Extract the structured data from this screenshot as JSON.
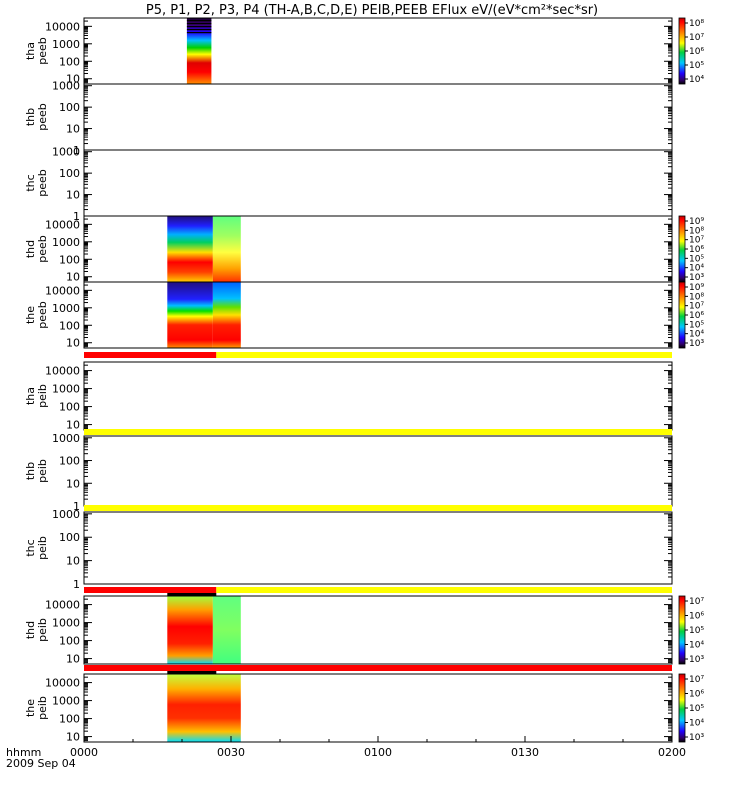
{
  "chart_data": {
    "type": "heatmap",
    "title": "P5, P1, P2, P3, P4 (TH-A,B,C,D,E) PEIB,PEEB EFlux eV/(eV*cm²*sec*sr)",
    "x_axis": {
      "label": "hhmm",
      "date": "2009 Sep 04",
      "ticks": [
        "0000",
        "0030",
        "0100",
        "0130",
        "0200"
      ],
      "range_minutes": [
        0,
        120
      ]
    },
    "panels": [
      {
        "probe_label": "tha",
        "instrument": "peeb",
        "y_ticks": [
          "10",
          "100",
          "1000",
          "10000"
        ],
        "yrange": [
          5,
          30000
        ],
        "scale": "log",
        "colorbar_ticks": [
          "10⁴",
          "10⁵",
          "10⁶",
          "10⁷",
          "10⁸"
        ],
        "data_segments": [
          {
            "start_min": 21,
            "end_min": 26
          }
        ]
      },
      {
        "probe_label": "thb",
        "instrument": "peeb",
        "y_ticks": [
          "1",
          "10",
          "100",
          "1000"
        ],
        "yrange": [
          1,
          1200
        ],
        "scale": "log",
        "data_segments": []
      },
      {
        "probe_label": "thc",
        "instrument": "peeb",
        "y_ticks": [
          "1",
          "10",
          "100",
          "1000"
        ],
        "yrange": [
          1,
          1200
        ],
        "scale": "log",
        "data_segments": []
      },
      {
        "probe_label": "thd",
        "instrument": "peeb",
        "y_ticks": [
          "10",
          "100",
          "1000",
          "10000"
        ],
        "yrange": [
          5,
          30000
        ],
        "scale": "log",
        "colorbar_ticks": [
          "10³",
          "10⁴",
          "10⁵",
          "10⁶",
          "10⁷",
          "10⁸",
          "10⁹"
        ],
        "data_segments": [
          {
            "start_min": 17,
            "end_min": 32
          }
        ]
      },
      {
        "probe_label": "the",
        "instrument": "peeb",
        "y_ticks": [
          "10",
          "100",
          "1000",
          "10000"
        ],
        "yrange": [
          5,
          30000
        ],
        "scale": "log",
        "colorbar_ticks": [
          "10³",
          "10⁴",
          "10⁵",
          "10⁶",
          "10⁷",
          "10⁸",
          "10⁹"
        ],
        "data_segments": [
          {
            "start_min": 17,
            "end_min": 32
          }
        ]
      },
      {
        "probe_label": "tha",
        "instrument": "peib",
        "y_ticks": [
          "10",
          "100",
          "1000",
          "10000"
        ],
        "yrange": [
          5,
          30000
        ],
        "scale": "log",
        "status_bar": [
          {
            "start_min": 0,
            "end_min": 27,
            "color": "#ff0000"
          },
          {
            "start_min": 27,
            "end_min": 120,
            "color": "#ffff00"
          }
        ],
        "data_segments": []
      },
      {
        "probe_label": "thb",
        "instrument": "peib",
        "y_ticks": [
          "1",
          "10",
          "100",
          "1000"
        ],
        "yrange": [
          1,
          1200
        ],
        "scale": "log",
        "status_bar": [
          {
            "start_min": 0,
            "end_min": 120,
            "color": "#ffff00"
          }
        ],
        "data_segments": []
      },
      {
        "probe_label": "thc",
        "instrument": "peib",
        "y_ticks": [
          "1",
          "10",
          "100",
          "1000"
        ],
        "yrange": [
          1,
          1200
        ],
        "scale": "log",
        "status_bar": [
          {
            "start_min": 0,
            "end_min": 120,
            "color": "#ffff00"
          }
        ],
        "data_segments": []
      },
      {
        "probe_label": "thd",
        "instrument": "peib",
        "y_ticks": [
          "10",
          "100",
          "1000",
          "10000"
        ],
        "yrange": [
          5,
          30000
        ],
        "scale": "log",
        "status_bar": [
          {
            "start_min": 0,
            "end_min": 27,
            "color": "#ff0000"
          },
          {
            "start_min": 27,
            "end_min": 120,
            "color": "#ffff00"
          }
        ],
        "colorbar_ticks": [
          "10³",
          "10⁴",
          "10⁵",
          "10⁶",
          "10⁷"
        ],
        "data_segments": [
          {
            "start_min": 17,
            "end_min": 32
          }
        ]
      },
      {
        "probe_label": "the",
        "instrument": "peib",
        "y_ticks": [
          "10",
          "100",
          "1000",
          "10000"
        ],
        "yrange": [
          5,
          30000
        ],
        "scale": "log",
        "status_bar": [
          {
            "start_min": 0,
            "end_min": 120,
            "color": "#ff0000"
          }
        ],
        "colorbar_ticks": [
          "10³",
          "10⁴",
          "10⁵",
          "10⁶",
          "10⁷"
        ],
        "data_segments": [
          {
            "start_min": 17,
            "end_min": 32
          }
        ]
      }
    ]
  }
}
